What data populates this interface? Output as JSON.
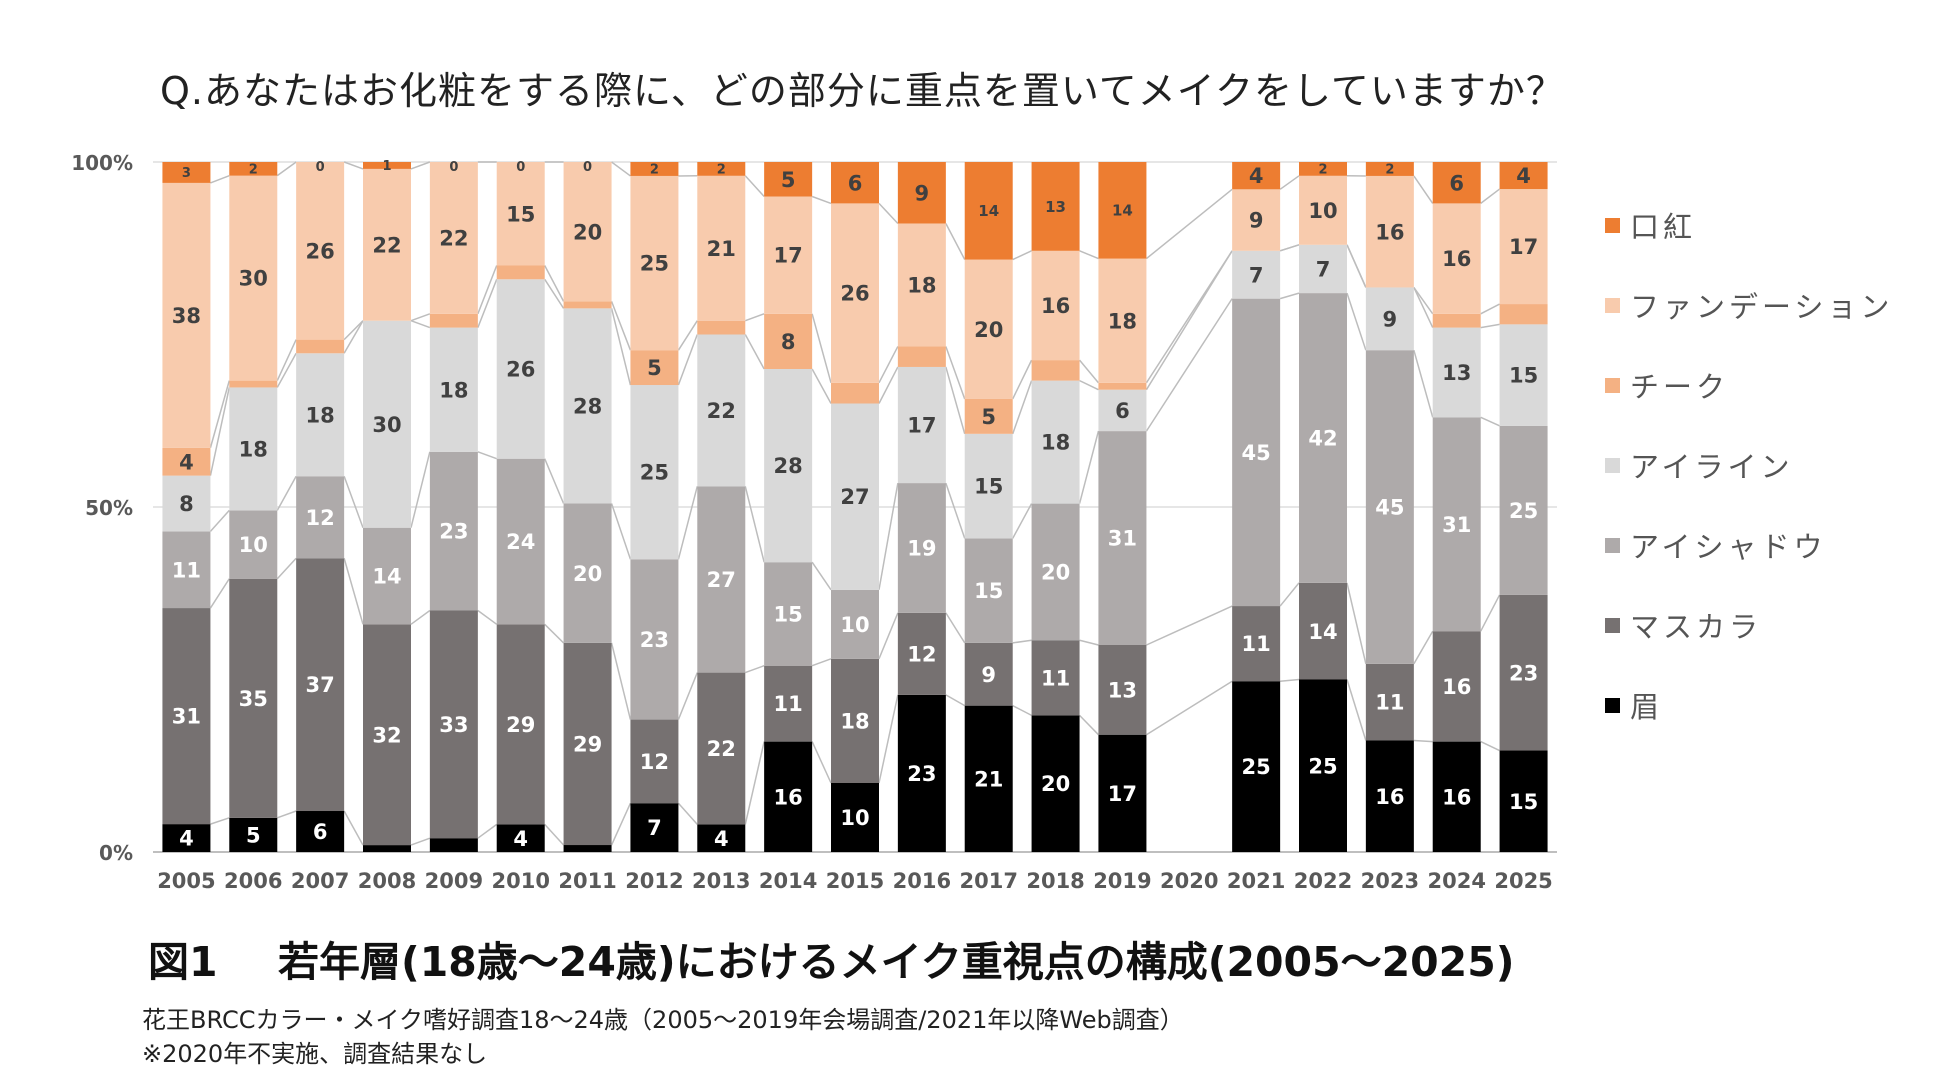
{
  "question": "Q.あなたはお化粧をする際に、どの部分に重点を置いてメイクをしていますか？",
  "caption_fig": "図1",
  "caption_text": "若年層(18歳～24歳)におけるメイク重視点の構成(2005～2025)",
  "note1": "花王BRCCカラー・メイク嗜好調査18～24歳（2005～2019年会場調査/2021年以降Web調査）",
  "note2": "※2020年不実施、調査結果なし",
  "chart_data": {
    "type": "bar",
    "stacked": true,
    "categories": [
      "2005",
      "2006",
      "2007",
      "2008",
      "2009",
      "2010",
      "2011",
      "2012",
      "2013",
      "2014",
      "2015",
      "2016",
      "2017",
      "2018",
      "2019",
      "2020",
      "2021",
      "2022",
      "2023",
      "2024",
      "2025"
    ],
    "y_ticks": [
      "0%",
      "50%",
      "100%"
    ],
    "ylim": [
      0,
      100
    ],
    "grid": true,
    "legend_position": "right",
    "series": [
      {
        "name": "眉",
        "color": "#000000",
        "label_color": "#ffffff",
        "values": [
          4,
          5,
          6,
          1,
          2,
          4,
          1,
          7,
          4,
          16,
          10,
          23,
          21,
          20,
          17,
          null,
          25,
          25,
          16,
          16,
          15
        ],
        "labels": [
          "4",
          "5",
          "6",
          "",
          "",
          "4",
          "",
          "7",
          "4",
          "16",
          "10",
          "23",
          "21",
          "20",
          "17",
          "",
          "25",
          "25",
          "16",
          "16",
          "15"
        ]
      },
      {
        "name": "マスカラ",
        "color": "#767171",
        "label_color": "#ffffff",
        "values": [
          31,
          35,
          37,
          32,
          33,
          29,
          29,
          12,
          22,
          11,
          18,
          12,
          9,
          11,
          13,
          null,
          11,
          14,
          11,
          16,
          23
        ],
        "labels": [
          "31",
          "35",
          "37",
          "32",
          "33",
          "29",
          "29",
          "12",
          "22",
          "11",
          "18",
          "12",
          "9",
          "11",
          "13",
          "",
          "11",
          "14",
          "11",
          "16",
          "23"
        ]
      },
      {
        "name": "アイシャドウ",
        "color": "#aeaaaa",
        "label_color": "#ffffff",
        "values": [
          11,
          10,
          12,
          14,
          23,
          24,
          20,
          23,
          27,
          15,
          10,
          19,
          15,
          20,
          31,
          null,
          45,
          42,
          45,
          31,
          25
        ],
        "labels": [
          "11",
          "10",
          "12",
          "14",
          "23",
          "24",
          "20",
          "23",
          "27",
          "15",
          "10",
          "19",
          "15",
          "20",
          "31",
          "",
          "45",
          "42",
          "45",
          "31",
          "25"
        ]
      },
      {
        "name": "アイライン",
        "color": "#d9d9d9",
        "label_color": "#404040",
        "values": [
          8,
          18,
          18,
          30,
          18,
          26,
          28,
          25,
          22,
          28,
          27,
          17,
          15,
          18,
          6,
          null,
          7,
          7,
          9,
          13,
          15
        ],
        "labels": [
          "8",
          "18",
          "18",
          "30",
          "18",
          "26",
          "28",
          "25",
          "22",
          "28",
          "27",
          "17",
          "15",
          "18",
          "6",
          "",
          "7",
          "7",
          "9",
          "13",
          "15"
        ]
      },
      {
        "name": "チーク",
        "color": "#f4b183",
        "label_color": "#404040",
        "values": [
          4,
          1,
          2,
          0,
          2,
          2,
          1,
          5,
          2,
          8,
          3,
          3,
          5,
          3,
          1,
          null,
          0,
          0,
          0,
          2,
          3
        ],
        "labels": [
          "4",
          "",
          "",
          "",
          "",
          "",
          "",
          "5",
          "",
          "8",
          "",
          "",
          "5",
          "",
          "",
          "",
          "",
          "",
          "",
          "",
          ""
        ]
      },
      {
        "name": "ファンデーション",
        "color": "#f8cbad",
        "label_color": "#404040",
        "values": [
          38,
          30,
          26,
          22,
          22,
          15,
          20,
          25,
          21,
          17,
          26,
          18,
          20,
          16,
          18,
          null,
          9,
          10,
          16,
          16,
          17
        ],
        "labels": [
          "38",
          "30",
          "26",
          "22",
          "22",
          "15",
          "20",
          "25",
          "21",
          "17",
          "26",
          "18",
          "20",
          "16",
          "18",
          "",
          "9",
          "10",
          "16",
          "16",
          "17"
        ]
      },
      {
        "name": "口紅",
        "color": "#ed7d31",
        "label_color": "#404040",
        "values": [
          3,
          2,
          0,
          1,
          0,
          0,
          0,
          2,
          2,
          5,
          6,
          9,
          14,
          13,
          14,
          null,
          4,
          2,
          2,
          6,
          4
        ],
        "labels": [
          "3",
          "2",
          "0",
          "1",
          "0",
          "0",
          "0",
          "2",
          "2",
          "5",
          "6",
          "9",
          "14",
          "13",
          "14",
          "",
          "4",
          "2",
          "2",
          "6",
          "4"
        ]
      }
    ]
  }
}
